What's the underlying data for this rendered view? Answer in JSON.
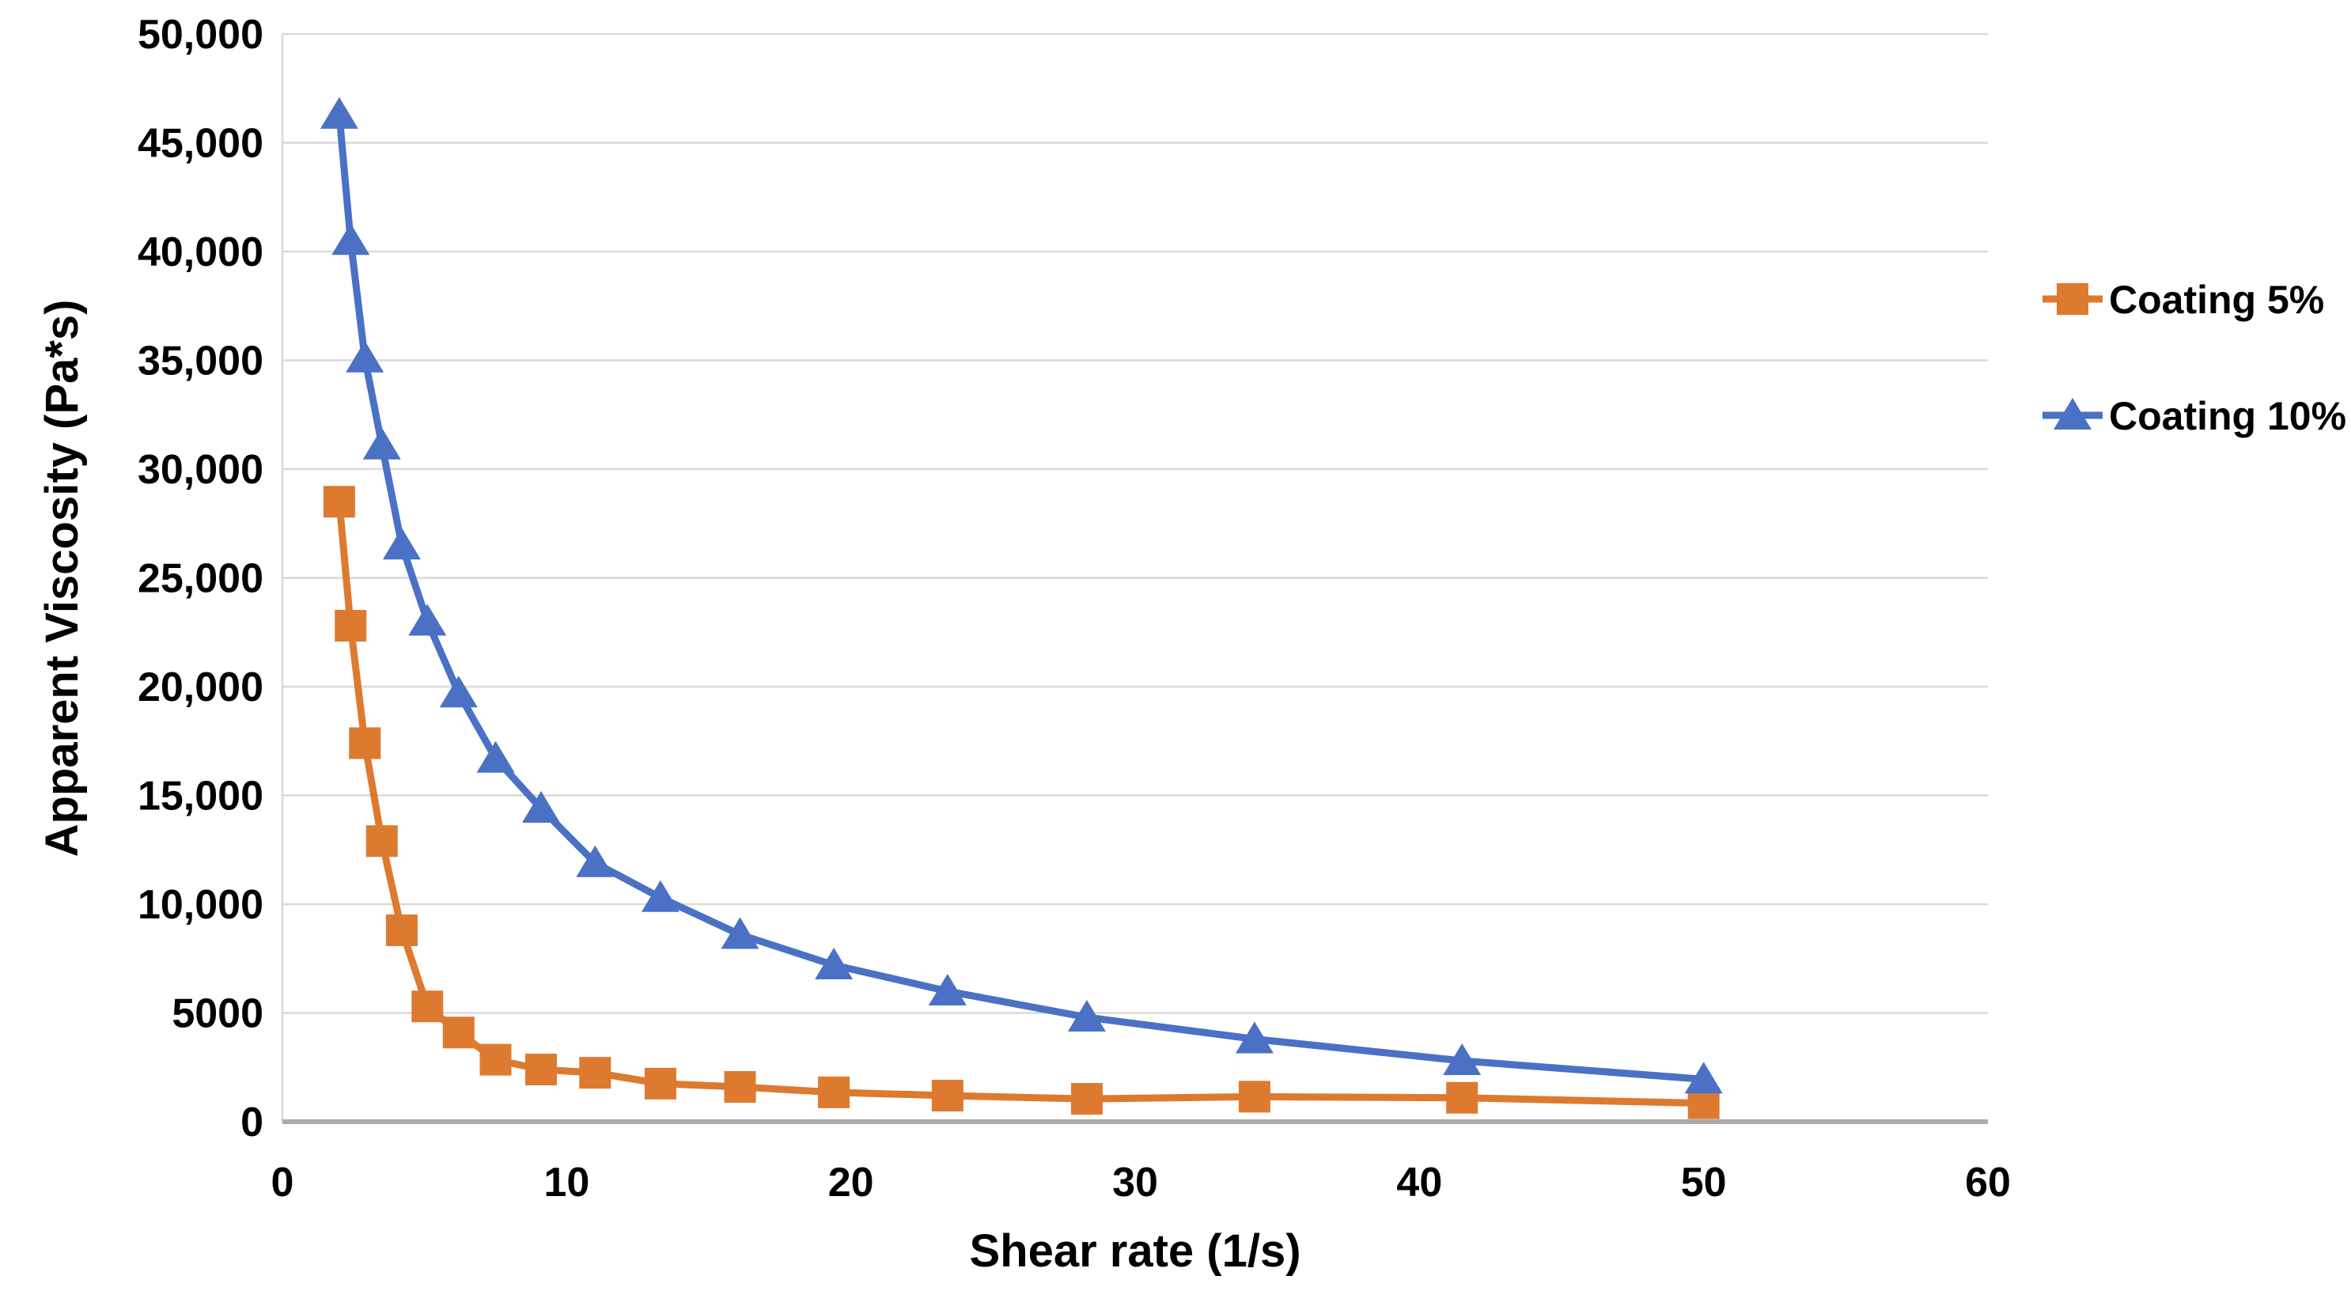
{
  "chart_data": {
    "type": "line",
    "title": "",
    "xlabel": "Shear rate (1/s)",
    "ylabel": "Apparent Viscosity (Pa*s)",
    "xlim": [
      0,
      60
    ],
    "ylim": [
      0,
      50000
    ],
    "grid": "horizontal",
    "legend_position": "right",
    "x_ticks": [
      {
        "value": 0,
        "label": "0"
      },
      {
        "value": 10,
        "label": "10"
      },
      {
        "value": 20,
        "label": "20"
      },
      {
        "value": 30,
        "label": "30"
      },
      {
        "value": 40,
        "label": "40"
      },
      {
        "value": 50,
        "label": "50"
      },
      {
        "value": 60,
        "label": "60"
      }
    ],
    "y_ticks": [
      {
        "value": 0,
        "label": "0"
      },
      {
        "value": 5000,
        "label": "5000"
      },
      {
        "value": 10000,
        "label": "10,000"
      },
      {
        "value": 15000,
        "label": "15,000"
      },
      {
        "value": 20000,
        "label": "20,000"
      },
      {
        "value": 25000,
        "label": "25,000"
      },
      {
        "value": 30000,
        "label": "30,000"
      },
      {
        "value": 35000,
        "label": "35,000"
      },
      {
        "value": 40000,
        "label": "40,000"
      },
      {
        "value": 45000,
        "label": "45,000"
      },
      {
        "value": 50000,
        "label": "50,000"
      }
    ],
    "x": [
      2.0,
      2.4,
      2.9,
      3.5,
      4.2,
      5.1,
      6.2,
      7.5,
      9.1,
      11.0,
      13.3,
      16.1,
      19.4,
      23.4,
      28.3,
      34.2,
      41.5,
      50.0
    ],
    "series": [
      {
        "name": "Coating 5%",
        "marker": "square",
        "color": "#DD7A30",
        "values": [
          28500,
          22800,
          17400,
          12900,
          8800,
          5300,
          4100,
          2850,
          2400,
          2250,
          1750,
          1600,
          1350,
          1200,
          1050,
          1150,
          1100,
          850
        ]
      },
      {
        "name": "Coating 10%",
        "marker": "triangle",
        "color": "#4A71C4",
        "values": [
          46300,
          40500,
          35100,
          31100,
          26500,
          23000,
          19700,
          16700,
          14400,
          11900,
          10300,
          8600,
          7200,
          6000,
          4800,
          3800,
          2800,
          1950
        ]
      }
    ],
    "colors": {
      "gridline": "#D9D9D9",
      "axis_line": "#D9D9D9",
      "baseline": "#ABABAB",
      "text": "#000000"
    }
  }
}
